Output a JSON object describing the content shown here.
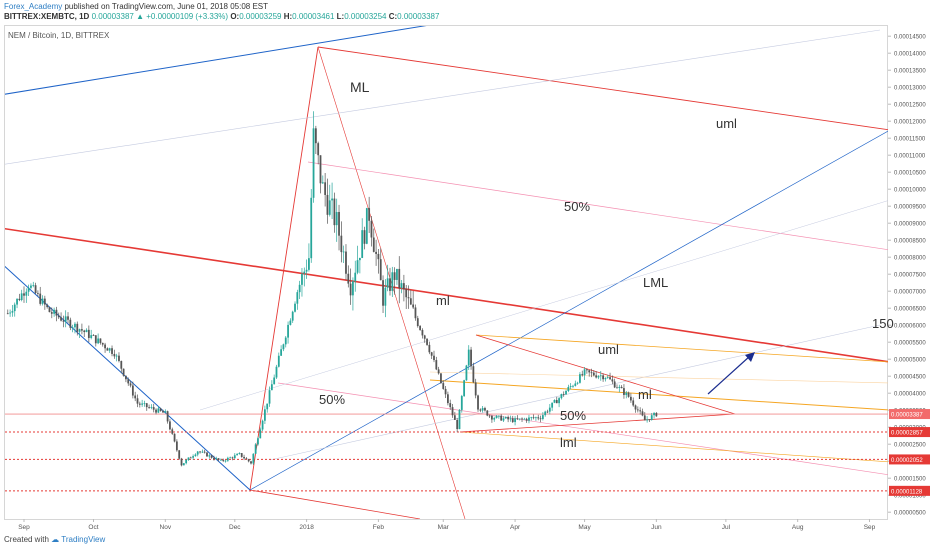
{
  "header": {
    "author": "Forex_Academy",
    "published": "published on TradingView.com, June 01, 2018 05:08 EST",
    "symbol": "BITTREX:XEMBTC, 1D",
    "last": "0.00003387",
    "change_arrow": "▲",
    "change": "+0.00000109 (+3.33%)",
    "o_label": "O:",
    "o_value": "0.00003259",
    "h_label": "H:",
    "h_value": "0.00003461",
    "l_label": "L:",
    "l_value": "0.00003254",
    "c_label": "C:",
    "c_value": "0.00003387"
  },
  "footer": {
    "created_with": "Created with",
    "brand": "TradingView"
  },
  "chart_data": {
    "type": "candlestick",
    "title": "NEM / Bitcoin, 1D, BITTREX",
    "x_ticks": [
      "Sep",
      "Oct",
      "Nov",
      "Dec",
      "2018",
      "Feb",
      "Mar",
      "Apr",
      "May",
      "Jun",
      "Jul",
      "Aug",
      "Sep"
    ],
    "y_ticks": [
      "0.00014500",
      "0.00014000",
      "0.00013500",
      "0.00013000",
      "0.00012500",
      "0.00012000",
      "0.00011500",
      "0.00011000",
      "0.00010500",
      "0.00010000",
      "0.00009500",
      "0.00009000",
      "0.00008500",
      "0.00008000",
      "0.00007500",
      "0.00007000",
      "0.00006500",
      "0.00006000",
      "0.00005500",
      "0.00005000",
      "0.00004500",
      "0.00004000",
      "0.00003500",
      "0.00003000",
      "0.00002500",
      "0.00002000",
      "0.00001500",
      "0.00001000",
      "0.00000500"
    ],
    "ylim": [
      3e-06,
      0.000148
    ],
    "price_path": [
      [
        "Aug 25",
        6.35e-05
      ],
      [
        "Sep 3",
        7.2e-05
      ],
      [
        "Sep 12",
        6.4e-05
      ],
      [
        "Sep 25",
        5.9e-05
      ],
      [
        "Oct 10",
        5.2e-05
      ],
      [
        "Oct 20",
        3.7e-05
      ],
      [
        "Nov 1",
        3.4e-05
      ],
      [
        "Nov 8",
        1.9e-05
      ],
      [
        "Nov 15",
        2.3e-05
      ],
      [
        "Nov 25",
        2e-05
      ],
      [
        "Dec 3",
        2.2e-05
      ],
      [
        "Dec 8",
        1.95e-05
      ],
      [
        "Dec 12",
        3e-05
      ],
      [
        "Dec 20",
        5e-05
      ],
      [
        "Dec 28",
        7e-05
      ],
      [
        "Jan 2",
        8e-05
      ],
      [
        "Jan 4",
        0.000115
      ],
      [
        "Jan 8",
        0.0001
      ],
      [
        "Jan 14",
        9e-05
      ],
      [
        "Jan 20",
        7.2e-05
      ],
      [
        "Jan 28",
        9.3e-05
      ],
      [
        "Feb 3",
        6.8e-05
      ],
      [
        "Feb 8",
        7.5e-05
      ],
      [
        "Feb 15",
        6.5e-05
      ],
      [
        "Feb 22",
        5.5e-05
      ],
      [
        "Mar 1",
        4.1e-05
      ],
      [
        "Mar 7",
        3e-05
      ],
      [
        "Mar 10",
        4.3e-05
      ],
      [
        "Mar 12",
        5.2e-05
      ],
      [
        "Mar 16",
        3.6e-05
      ],
      [
        "Mar 22",
        3.3e-05
      ],
      [
        "Apr 1",
        3.2e-05
      ],
      [
        "Apr 12",
        3.3e-05
      ],
      [
        "Apr 22",
        4e-05
      ],
      [
        "May 1",
        4.6e-05
      ],
      [
        "May 10",
        4.5e-05
      ],
      [
        "May 20",
        3.9e-05
      ],
      [
        "May 27",
        3.2e-05
      ],
      [
        "Jun 1",
        3.387e-05
      ]
    ],
    "price_labels": [
      {
        "value": 3.387e-05,
        "text": "0.00003387",
        "style": "last"
      },
      {
        "value": 2.857e-05,
        "text": "0.00002857",
        "style": "level"
      },
      {
        "value": 2.052e-05,
        "text": "0.00002052",
        "style": "level"
      },
      {
        "value": 1.128e-05,
        "text": "0.00001128",
        "style": "level"
      }
    ],
    "annotations": {
      "ml_top": "ML",
      "uml_top": "uml",
      "fifty_top": "50%",
      "lml_top": "LML",
      "ml_mid": "ml",
      "fifty_left": "50%",
      "uml_small": "uml",
      "ml_small": "ml",
      "fifty_small": "50%",
      "lml_small": "lml",
      "edge_150": "150"
    },
    "colors": {
      "up": "#26a69a",
      "down": "#555555",
      "red_line": "#e53935",
      "blue_line": "#1e63c8",
      "orange_line": "#f5a623",
      "pink_line": "#f48fb1"
    }
  }
}
